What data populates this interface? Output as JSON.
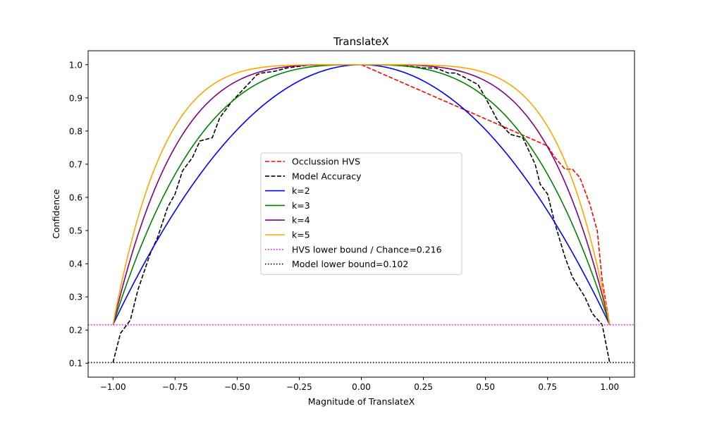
{
  "chart_data": {
    "type": "line",
    "title": "TranslateX",
    "xlabel": "Magnitude of TranslateX",
    "ylabel": "Confidence",
    "xlim": [
      -1.1,
      1.1
    ],
    "ylim": [
      0.058,
      1.042
    ],
    "xticks": [
      -1.0,
      -0.75,
      -0.5,
      -0.25,
      0.0,
      0.25,
      0.5,
      0.75,
      1.0
    ],
    "xtick_labels": [
      "−1.00",
      "−0.75",
      "−0.50",
      "−0.25",
      "0.00",
      "0.25",
      "0.50",
      "0.75",
      "1.00"
    ],
    "yticks": [
      0.1,
      0.2,
      0.3,
      0.4,
      0.5,
      0.6,
      0.7,
      0.8,
      0.9,
      1.0
    ],
    "ytick_labels": [
      "0.1",
      "0.2",
      "0.3",
      "0.4",
      "0.5",
      "0.6",
      "0.7",
      "0.8",
      "0.9",
      "1.0"
    ],
    "grid": false,
    "legend_position": "center-left",
    "series": [
      {
        "name": "Occlussion HVS",
        "color": "#ff0000",
        "style": "dashed",
        "x": [
          0.0,
          0.75,
          0.78,
          0.82,
          0.85,
          0.88,
          0.92,
          0.95,
          0.97,
          1.0
        ],
        "y": [
          1.0,
          0.755,
          0.72,
          0.685,
          0.685,
          0.66,
          0.58,
          0.5,
          0.35,
          0.216
        ]
      },
      {
        "name": "Model Accuracy",
        "color": "#000000",
        "style": "dashed",
        "x": [
          -1.0,
          -0.97,
          -0.93,
          -0.9,
          -0.85,
          -0.82,
          -0.78,
          -0.75,
          -0.72,
          -0.68,
          -0.65,
          -0.6,
          -0.57,
          -0.52,
          -0.47,
          -0.42,
          -0.4,
          -0.35,
          -0.3,
          -0.25,
          -0.2,
          -0.1,
          0.0,
          0.1,
          0.2,
          0.25,
          0.3,
          0.35,
          0.38,
          0.42,
          0.47,
          0.5,
          0.55,
          0.6,
          0.65,
          0.7,
          0.72,
          0.75,
          0.78,
          0.82,
          0.85,
          0.9,
          0.93,
          0.97,
          1.0
        ],
        "y": [
          0.102,
          0.19,
          0.23,
          0.32,
          0.43,
          0.48,
          0.57,
          0.61,
          0.68,
          0.72,
          0.77,
          0.78,
          0.84,
          0.89,
          0.93,
          0.97,
          0.975,
          0.98,
          0.99,
          0.995,
          1.0,
          1.0,
          1.0,
          1.0,
          0.995,
          0.99,
          0.99,
          0.975,
          0.975,
          0.96,
          0.94,
          0.9,
          0.83,
          0.79,
          0.78,
          0.7,
          0.64,
          0.61,
          0.52,
          0.42,
          0.36,
          0.3,
          0.25,
          0.216,
          0.102
        ]
      },
      {
        "name": "k=2",
        "color": "#0000ff",
        "style": "solid",
        "k": 2,
        "floor": 0.216
      },
      {
        "name": "k=3",
        "color": "#008000",
        "style": "solid",
        "k": 3,
        "floor": 0.216
      },
      {
        "name": "k=4",
        "color": "#800080",
        "style": "solid",
        "k": 4,
        "floor": 0.216
      },
      {
        "name": "k=5",
        "color": "#ffa500",
        "style": "solid",
        "k": 5,
        "floor": 0.216
      },
      {
        "name": "HVS lower bound / Chance=0.216",
        "color": "#ff00ff",
        "style": "dotted",
        "hline": 0.216
      },
      {
        "name": "Model lower bound=0.102",
        "color": "#000000",
        "style": "dotted",
        "hline": 0.102
      }
    ]
  }
}
